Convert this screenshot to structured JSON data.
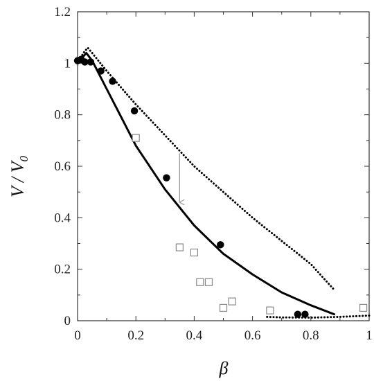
{
  "chart_data": {
    "type": "scatter",
    "title": "",
    "xlabel": "β",
    "ylabel": "V / V",
    "ylabel_subscript": "0",
    "xlim": [
      0,
      1
    ],
    "ylim": [
      0,
      1.2
    ],
    "x_ticks": [
      "0",
      "0.2",
      "0.4",
      "0.6",
      "0.8",
      "1"
    ],
    "y_ticks": [
      "0",
      "0.2",
      "0.4",
      "0.6",
      "0.8",
      "1",
      "1.2"
    ],
    "grid": false,
    "legend": "none",
    "series": [
      {
        "kind": "points",
        "marker": "filled-circle",
        "color": "#000000",
        "points": [
          [
            0.0,
            1.01
          ],
          [
            0.012,
            1.015
          ],
          [
            0.025,
            1.005
          ],
          [
            0.045,
            1.005
          ],
          [
            0.08,
            0.97
          ],
          [
            0.12,
            0.93
          ],
          [
            0.195,
            0.815
          ],
          [
            0.305,
            0.555
          ],
          [
            0.49,
            0.295
          ],
          [
            0.755,
            0.025
          ],
          [
            0.78,
            0.025
          ]
        ]
      },
      {
        "kind": "points",
        "marker": "open-square",
        "color": "#888888",
        "points": [
          [
            0.2,
            0.71
          ],
          [
            0.35,
            0.285
          ],
          [
            0.4,
            0.265
          ],
          [
            0.42,
            0.15
          ],
          [
            0.45,
            0.15
          ],
          [
            0.5,
            0.05
          ],
          [
            0.53,
            0.075
          ],
          [
            0.66,
            0.04
          ],
          [
            0.98,
            0.05
          ]
        ]
      },
      {
        "kind": "line",
        "style": "solid",
        "color": "#000000",
        "points": [
          [
            0.0,
            1.0
          ],
          [
            0.03,
            1.04
          ],
          [
            0.05,
            1.01
          ],
          [
            0.1,
            0.9
          ],
          [
            0.15,
            0.79
          ],
          [
            0.2,
            0.68
          ],
          [
            0.3,
            0.51
          ],
          [
            0.4,
            0.37
          ],
          [
            0.5,
            0.26
          ],
          [
            0.6,
            0.18
          ],
          [
            0.7,
            0.11
          ],
          [
            0.8,
            0.06
          ],
          [
            0.88,
            0.025
          ]
        ]
      },
      {
        "kind": "line",
        "style": "dotted",
        "color": "#000000",
        "points": [
          [
            0.0,
            1.0
          ],
          [
            0.02,
            1.04
          ],
          [
            0.035,
            1.06
          ],
          [
            0.05,
            1.04
          ],
          [
            0.1,
            0.97
          ],
          [
            0.2,
            0.84
          ],
          [
            0.3,
            0.72
          ],
          [
            0.4,
            0.6
          ],
          [
            0.5,
            0.5
          ],
          [
            0.6,
            0.4
          ],
          [
            0.7,
            0.31
          ],
          [
            0.8,
            0.22
          ],
          [
            0.88,
            0.12
          ]
        ]
      },
      {
        "kind": "line",
        "style": "dotted",
        "color": "#000000",
        "points": [
          [
            0.65,
            0.015
          ],
          [
            0.7,
            0.013
          ],
          [
            0.8,
            0.012
          ],
          [
            0.9,
            0.015
          ],
          [
            1.0,
            0.02
          ]
        ]
      }
    ],
    "annotations": [
      {
        "kind": "arrow",
        "color": "#999999",
        "from": [
          0.35,
          0.65
        ],
        "to": [
          0.35,
          0.46
        ]
      }
    ]
  }
}
